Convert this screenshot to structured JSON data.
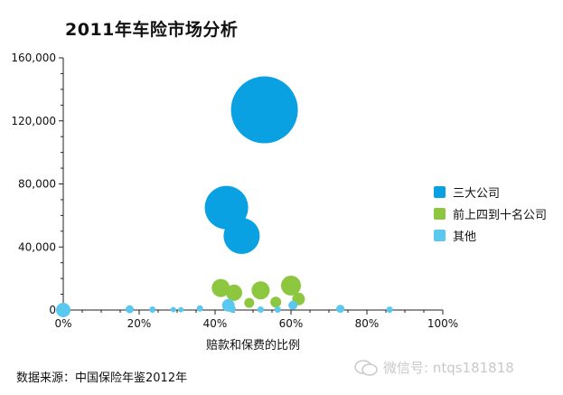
{
  "chart_data": {
    "type": "scatter",
    "title": "2011年车险市场分析",
    "xlabel": "赔款和保费的比例",
    "ylabel": "",
    "xlim": [
      0,
      1
    ],
    "ylim": [
      0,
      160000
    ],
    "x_ticks": [
      "0%",
      "20%",
      "40%",
      "60%",
      "80%",
      "100%"
    ],
    "y_ticks": [
      "0",
      "40,000",
      "80,000",
      "120,000",
      "160,000"
    ],
    "legend_position": "right",
    "series": [
      {
        "name": "三大公司",
        "color": "#0aa1e2",
        "points": [
          {
            "x": 0.53,
            "y": 127000,
            "size": 37
          },
          {
            "x": 0.43,
            "y": 65000,
            "size": 24
          },
          {
            "x": 0.47,
            "y": 47000,
            "size": 20
          }
        ]
      },
      {
        "name": "前上四到十名公司",
        "color": "#8dc63f",
        "points": [
          {
            "x": 0.415,
            "y": 14000,
            "size": 10
          },
          {
            "x": 0.45,
            "y": 11000,
            "size": 9
          },
          {
            "x": 0.52,
            "y": 12500,
            "size": 10
          },
          {
            "x": 0.6,
            "y": 15500,
            "size": 11
          },
          {
            "x": 0.62,
            "y": 7000,
            "size": 7
          },
          {
            "x": 0.56,
            "y": 5000,
            "size": 6
          },
          {
            "x": 0.49,
            "y": 4500,
            "size": 5.5
          }
        ]
      },
      {
        "name": "其他",
        "color": "#5ac8ef",
        "points": [
          {
            "x": 0.0,
            "y": 0,
            "size": 8
          },
          {
            "x": 0.175,
            "y": 500,
            "size": 4.5
          },
          {
            "x": 0.235,
            "y": 300,
            "size": 3.5
          },
          {
            "x": 0.29,
            "y": 300,
            "size": 3
          },
          {
            "x": 0.31,
            "y": 200,
            "size": 3
          },
          {
            "x": 0.36,
            "y": 1000,
            "size": 3.5
          },
          {
            "x": 0.435,
            "y": 3000,
            "size": 7
          },
          {
            "x": 0.445,
            "y": 600,
            "size": 4
          },
          {
            "x": 0.52,
            "y": 300,
            "size": 3.5
          },
          {
            "x": 0.565,
            "y": 300,
            "size": 3.5
          },
          {
            "x": 0.605,
            "y": 3000,
            "size": 5
          },
          {
            "x": 0.73,
            "y": 800,
            "size": 4.5
          },
          {
            "x": 0.86,
            "y": 200,
            "size": 3.5
          }
        ]
      }
    ]
  },
  "footer": {
    "source": "数据来源：中国保险年鉴2012年",
    "watermark": "微信号: ntqs181818"
  }
}
